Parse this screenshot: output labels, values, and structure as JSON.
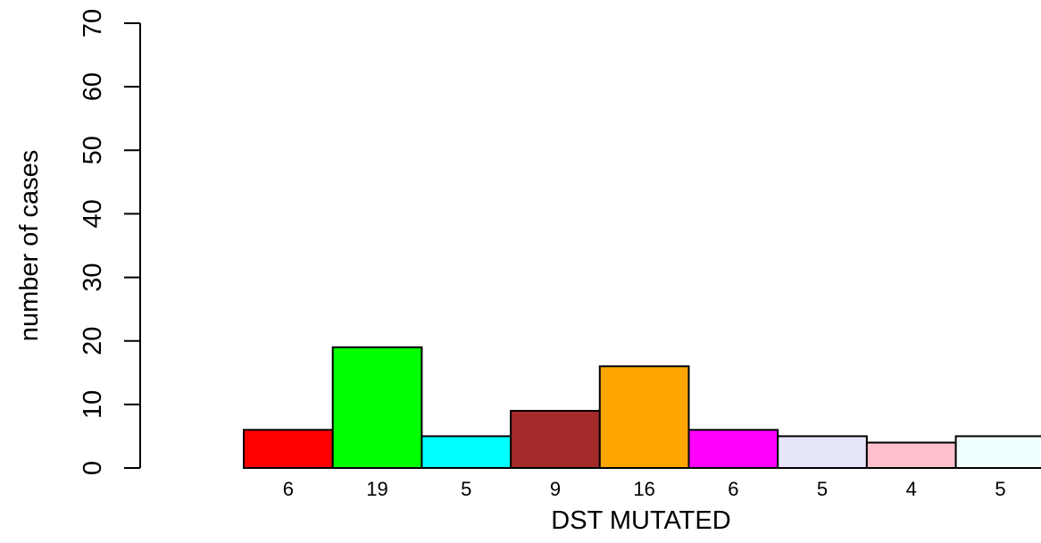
{
  "chart_data": {
    "type": "bar",
    "title": "",
    "xlabel": "DST MUTATED",
    "ylabel": "number of cases",
    "ylim": [
      0,
      70
    ],
    "yticks": [
      0,
      10,
      20,
      30,
      40,
      50,
      60,
      70
    ],
    "categories": [
      "6",
      "19",
      "5",
      "9",
      "16",
      "6",
      "5",
      "4",
      "5"
    ],
    "values": [
      6,
      19,
      5,
      9,
      16,
      6,
      5,
      4,
      5
    ],
    "colors": [
      "#ff0000",
      "#00ff00",
      "#00ffff",
      "#a52a2a",
      "#ffa500",
      "#ff00ff",
      "#e6e6fa",
      "#ffc0cb",
      "#f0ffff"
    ],
    "grid": false,
    "legend": "none"
  }
}
